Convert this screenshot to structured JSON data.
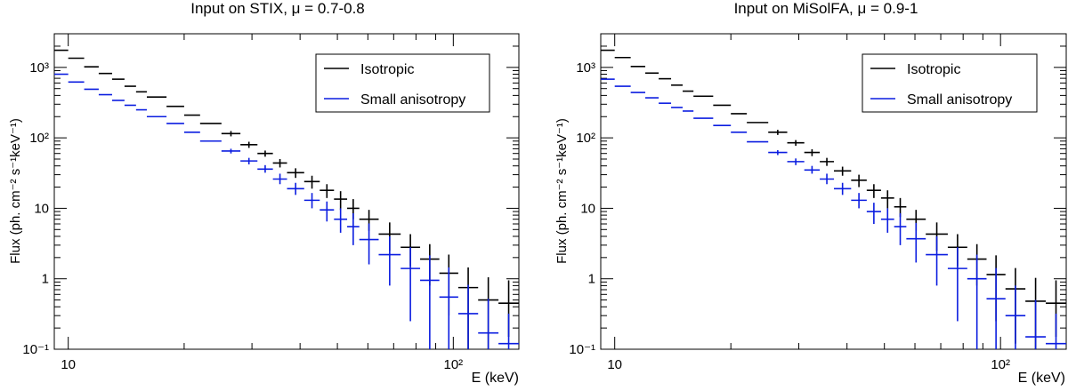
{
  "chart_data": [
    {
      "type": "errorbar-step",
      "title": "Input on STIX, μ = 0.7-0.8",
      "xlabel": "E (keV)",
      "ylabel": "Flux (ph. cm⁻² s⁻¹keV⁻¹)",
      "xscale": "log",
      "yscale": "log",
      "xlim": [
        9.2,
        148
      ],
      "ylim": [
        0.1,
        3000
      ],
      "x_tick_labels": [
        "10",
        "10²"
      ],
      "y_tick_labels": [
        "10⁻¹",
        "1",
        "10",
        "10²",
        "10³"
      ],
      "legend": {
        "position": "top-right",
        "entries": [
          "Isotropic",
          "Small anisotropy"
        ]
      },
      "bins": [
        [
          9.2,
          10
        ],
        [
          10,
          11
        ],
        [
          11,
          12
        ],
        [
          12,
          13
        ],
        [
          13,
          14
        ],
        [
          14,
          15
        ],
        [
          15,
          16
        ],
        [
          16,
          18
        ],
        [
          18,
          20
        ],
        [
          20,
          22
        ],
        [
          22,
          25
        ],
        [
          25,
          28
        ],
        [
          28,
          31
        ],
        [
          31,
          34
        ],
        [
          34,
          37
        ],
        [
          37,
          41
        ],
        [
          41,
          45
        ],
        [
          45,
          49
        ],
        [
          49,
          53
        ],
        [
          53,
          57
        ],
        [
          57,
          64
        ],
        [
          64,
          73
        ],
        [
          73,
          82
        ],
        [
          82,
          92
        ],
        [
          92,
          103
        ],
        [
          103,
          116
        ],
        [
          116,
          131
        ],
        [
          131,
          148
        ]
      ],
      "series": [
        {
          "name": "Isotropic",
          "color": "#000000",
          "values": [
            1750,
            1350,
            1020,
            820,
            680,
            540,
            450,
            380,
            280,
            210,
            160,
            115,
            80,
            60,
            44,
            32,
            24,
            18,
            13.5,
            10,
            7,
            4.3,
            2.8,
            1.9,
            1.2,
            0.75,
            0.5,
            0.45
          ],
          "err_low": [
            0,
            0,
            0,
            0,
            0,
            0,
            0,
            0,
            0,
            0,
            0,
            10,
            8,
            6,
            6,
            5,
            5,
            4,
            4,
            3,
            2.2,
            1.8,
            1.3,
            1.1,
            0.9,
            0.65,
            0.4,
            0.3
          ],
          "err_high": [
            0,
            0,
            0,
            0,
            0,
            0,
            0,
            0,
            0,
            0,
            0,
            10,
            8,
            6,
            6,
            5,
            5,
            4,
            4,
            3.5,
            2.5,
            2,
            1.5,
            1.2,
            1,
            0.7,
            0.55,
            0.5
          ]
        },
        {
          "name": "Small anisotropy",
          "color": "#0b1de0",
          "values": [
            800,
            620,
            490,
            410,
            340,
            290,
            250,
            200,
            160,
            120,
            90,
            65,
            47,
            36,
            26,
            19,
            13,
            9.5,
            7,
            5.5,
            3.6,
            2.2,
            1.4,
            0.95,
            0.55,
            0.32,
            0.17,
            0.12
          ],
          "err_low": [
            0,
            0,
            0,
            0,
            0,
            0,
            0,
            0,
            0,
            0,
            0,
            5,
            5,
            4,
            4,
            3.5,
            3,
            3,
            2.5,
            2.5,
            2,
            1.4,
            1.15,
            0.85,
            0.45,
            0.22,
            0.07,
            0.02
          ],
          "err_high": [
            0,
            0,
            0,
            0,
            0,
            0,
            0,
            0,
            0,
            0,
            0,
            5,
            5,
            5,
            5,
            4,
            3.5,
            3,
            3,
            3,
            2.5,
            1.8,
            1.4,
            1.2,
            0.9,
            0.5,
            0.35,
            0.2
          ]
        }
      ]
    },
    {
      "type": "errorbar-step",
      "title": "Input on MiSolFA, μ = 0.9-1",
      "xlabel": "E (keV)",
      "ylabel": "Flux (ph. cm⁻² s⁻¹keV⁻¹)",
      "xscale": "log",
      "yscale": "log",
      "xlim": [
        9.2,
        148
      ],
      "ylim": [
        0.1,
        3000
      ],
      "x_tick_labels": [
        "10",
        "10²"
      ],
      "y_tick_labels": [
        "10⁻¹",
        "1",
        "10",
        "10²",
        "10³"
      ],
      "legend": {
        "position": "top-right",
        "entries": [
          "Isotropic",
          "Small anisotropy"
        ]
      },
      "bins": [
        [
          9.2,
          10
        ],
        [
          10,
          11
        ],
        [
          11,
          12
        ],
        [
          12,
          13
        ],
        [
          13,
          14
        ],
        [
          14,
          15
        ],
        [
          15,
          16
        ],
        [
          16,
          18
        ],
        [
          18,
          20
        ],
        [
          20,
          22
        ],
        [
          22,
          25
        ],
        [
          25,
          28
        ],
        [
          28,
          31
        ],
        [
          31,
          34
        ],
        [
          34,
          37
        ],
        [
          37,
          41
        ],
        [
          41,
          45
        ],
        [
          45,
          49
        ],
        [
          49,
          53
        ],
        [
          53,
          57
        ],
        [
          57,
          64
        ],
        [
          64,
          73
        ],
        [
          73,
          82
        ],
        [
          82,
          92
        ],
        [
          92,
          103
        ],
        [
          103,
          116
        ],
        [
          116,
          131
        ],
        [
          131,
          148
        ]
      ],
      "series": [
        {
          "name": "Isotropic",
          "color": "#000000",
          "values": [
            1750,
            1380,
            1030,
            830,
            690,
            560,
            460,
            390,
            290,
            220,
            165,
            120,
            85,
            62,
            46,
            34,
            25,
            18,
            14,
            10.5,
            7,
            4.3,
            2.8,
            1.9,
            1.15,
            0.72,
            0.48,
            0.45
          ],
          "err_low": [
            0,
            0,
            0,
            0,
            0,
            0,
            0,
            0,
            0,
            0,
            0,
            10,
            8,
            7,
            6,
            5,
            5,
            4,
            4,
            3,
            2.2,
            1.8,
            1.3,
            1.1,
            0.9,
            0.6,
            0.4,
            0.3
          ],
          "err_high": [
            0,
            0,
            0,
            0,
            0,
            0,
            0,
            0,
            0,
            0,
            0,
            10,
            8,
            7,
            6,
            5,
            5,
            4,
            4,
            3.5,
            2.5,
            2,
            1.5,
            1.2,
            1,
            0.7,
            0.55,
            0.5
          ]
        },
        {
          "name": "Small anisotropy",
          "color": "#0b1de0",
          "values": [
            680,
            540,
            440,
            370,
            310,
            270,
            240,
            190,
            150,
            120,
            88,
            62,
            46,
            35,
            26,
            19,
            13,
            9,
            7,
            5.5,
            3.7,
            2.2,
            1.4,
            1.0,
            0.52,
            0.3,
            0.15,
            0.12
          ],
          "err_low": [
            0,
            0,
            0,
            0,
            0,
            0,
            0,
            0,
            0,
            0,
            0,
            5,
            5,
            4,
            4,
            3.5,
            3,
            3,
            2.5,
            2.5,
            2,
            1.4,
            1.15,
            0.9,
            0.42,
            0.2,
            0.05,
            0.02
          ],
          "err_high": [
            0,
            0,
            0,
            0,
            0,
            0,
            0,
            0,
            0,
            0,
            0,
            5,
            5,
            5,
            5,
            4,
            3.5,
            3,
            3,
            3,
            2.5,
            1.8,
            1.4,
            1.2,
            0.9,
            0.5,
            0.35,
            0.2
          ]
        }
      ]
    }
  ]
}
